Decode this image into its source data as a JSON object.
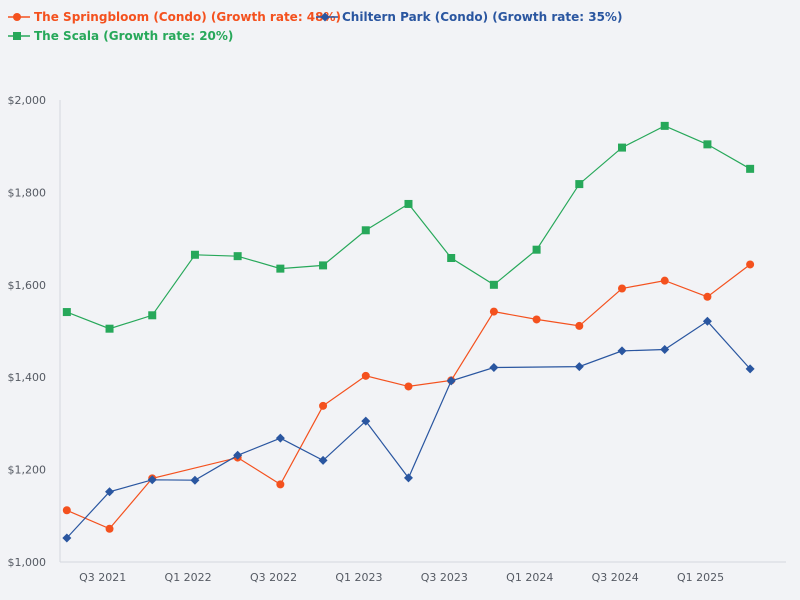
{
  "chart_data": {
    "type": "line",
    "title": "",
    "xlabel": "",
    "ylabel": "",
    "ylim": [
      1000,
      2000
    ],
    "y_ticks": [
      1000,
      1200,
      1400,
      1600,
      1800,
      2000
    ],
    "y_tick_labels": [
      "$1,000",
      "$1,200",
      "$1,400",
      "$1,600",
      "$1,800",
      "$2,000"
    ],
    "x_range": [
      2021.25,
      2025.5
    ],
    "x_ticks": [
      2021.5,
      2022.0,
      2022.5,
      2023.0,
      2023.5,
      2024.0,
      2024.5,
      2025.0
    ],
    "x_tick_labels": [
      "Q3 2021",
      "Q1 2022",
      "Q3 2022",
      "Q1 2023",
      "Q3 2023",
      "Q1 2024",
      "Q3 2024",
      "Q1 2025"
    ],
    "grid": false,
    "legend_position": "top-left",
    "series": [
      {
        "name": "The Springbloom (Condo) (Growth rate: 48%)",
        "color": "#f4511e",
        "marker": "circle",
        "x": [
          2021.29,
          2021.54,
          2021.79,
          2022.29,
          2022.54,
          2022.79,
          2023.04,
          2023.29,
          2023.54,
          2023.79,
          2024.04,
          2024.29,
          2024.54,
          2024.79,
          2025.04,
          2025.29
        ],
        "values": [
          1112,
          1072,
          1181,
          1226,
          1168,
          1338,
          1403,
          1380,
          1393,
          1542,
          1525,
          1511,
          1592,
          1609,
          1574,
          1644
        ]
      },
      {
        "name": "Chiltern Park (Condo) (Growth rate: 35%)",
        "color": "#2a56a0",
        "marker": "diamond",
        "x": [
          2021.29,
          2021.54,
          2021.79,
          2022.04,
          2022.29,
          2022.54,
          2022.79,
          2023.04,
          2023.29,
          2023.54,
          2023.79,
          2024.29,
          2024.54,
          2024.79,
          2025.04,
          2025.29
        ],
        "values": [
          1052,
          1152,
          1178,
          1177,
          1231,
          1268,
          1220,
          1305,
          1182,
          1392,
          1421,
          1423,
          1457,
          1460,
          1521,
          1418
        ]
      },
      {
        "name": "The Scala (Growth rate: 20%)",
        "color": "#27a85a",
        "marker": "square",
        "x": [
          2021.29,
          2021.54,
          2021.79,
          2022.04,
          2022.29,
          2022.54,
          2022.79,
          2023.04,
          2023.29,
          2023.54,
          2023.79,
          2024.04,
          2024.29,
          2024.54,
          2024.79,
          2025.04,
          2025.29
        ],
        "values": [
          1541,
          1505,
          1534,
          1665,
          1662,
          1635,
          1642,
          1718,
          1775,
          1658,
          1600,
          1676,
          1818,
          1897,
          1944,
          1904,
          1851
        ]
      }
    ]
  }
}
